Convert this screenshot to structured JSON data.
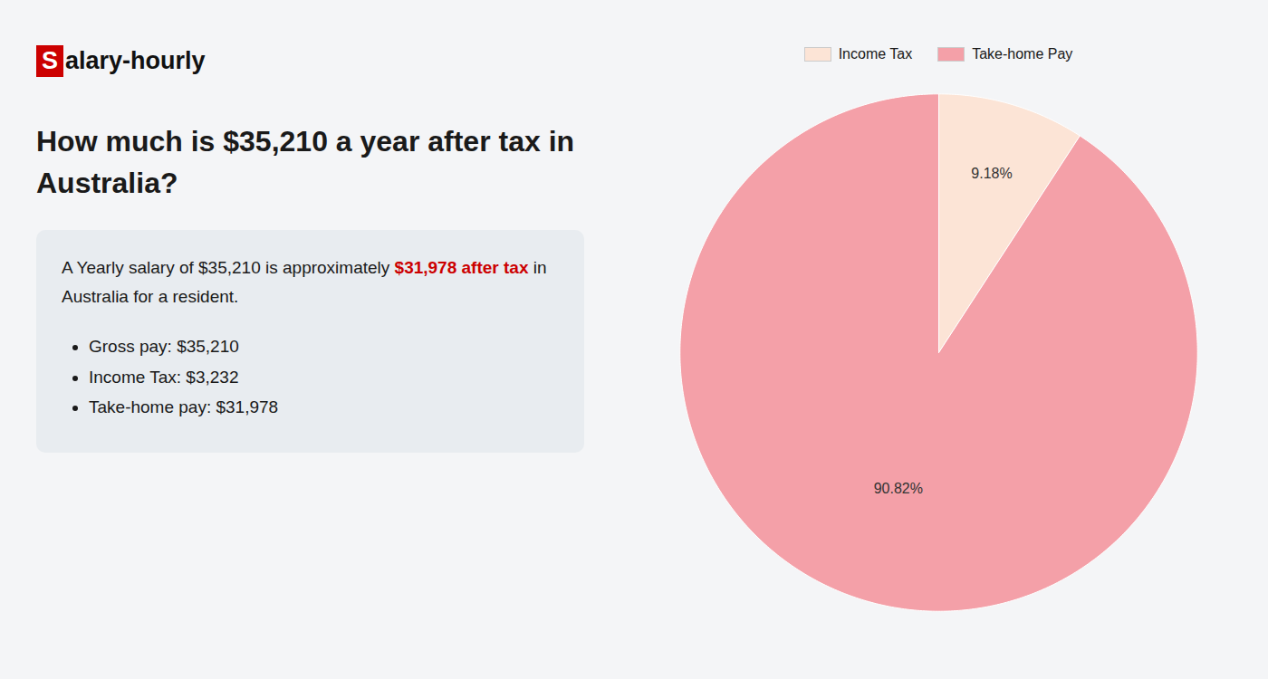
{
  "chart_data": {
    "type": "pie",
    "title": "How much is $35,210 a year after tax in\nAustralia?",
    "logo": [
      {
        "text": "S",
        "color": "#ffffff",
        "background_color": "#cc0000"
      },
      {
        "text": "alary-hourly",
        "color": "#111111"
      }
    ],
    "summary": [
      [
        {
          "text": "A Yearly salary of $35,210 is approximately "
        },
        {
          "text": "$31,978 after tax",
          "color": "#cc0000",
          "bold": true
        },
        {
          "text": " in"
        }
      ],
      [
        {
          "text": "Australia for a resident."
        }
      ]
    ],
    "bullets": [
      "Gross pay: $35,210",
      "Income Tax: $3,232",
      "Take-home pay: $31,978"
    ],
    "background_color": "#f4f5f7",
    "box_color": "#e8ecf0",
    "categories": [
      "Income Tax",
      "Take-home Pay"
    ],
    "values": [
      9.18,
      90.82
    ],
    "value_labels": [
      "9.18%",
      "90.82%"
    ],
    "colors": [
      "#fce4d6",
      "#f4a0a8"
    ],
    "data_labels": true,
    "legend": "top"
  }
}
